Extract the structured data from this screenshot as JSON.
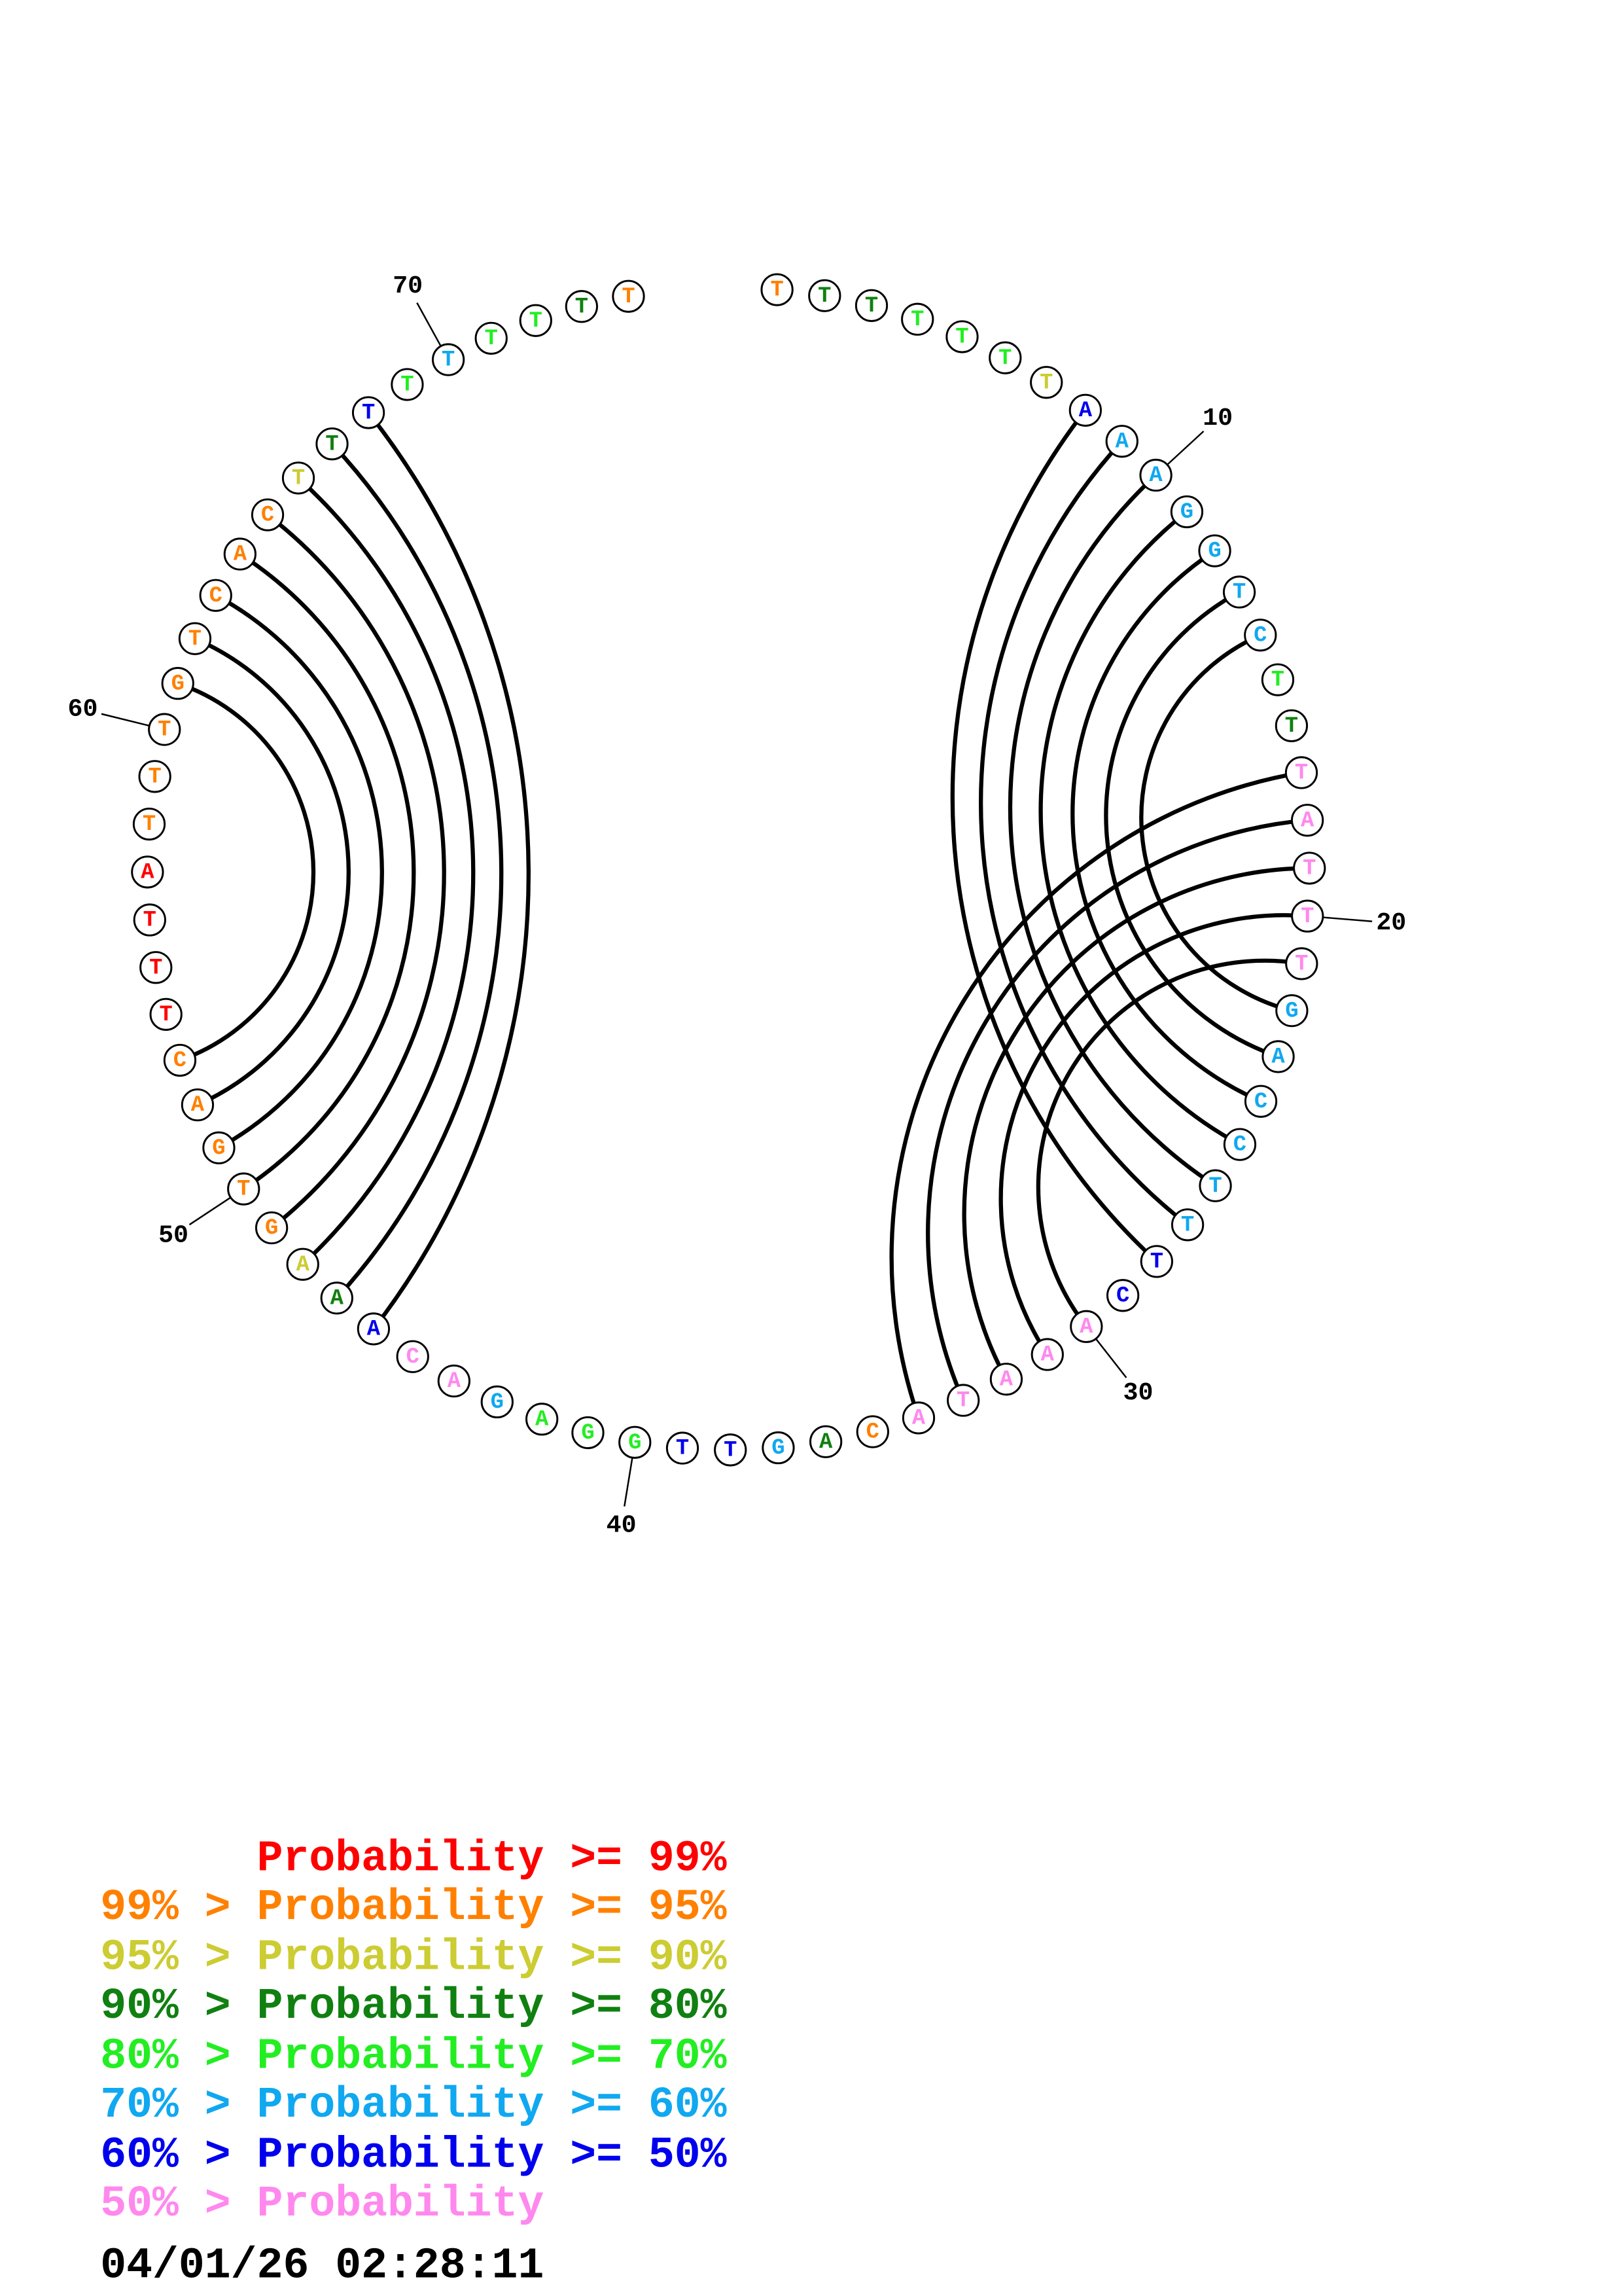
{
  "colors": {
    "p99": "#ff0000",
    "p95": "#ff8000",
    "p90": "#cccc33",
    "p80": "#108010",
    "p70": "#22ee22",
    "p60": "#10a8f0",
    "p50": "#0000ee",
    "lt50": "#ff88ee"
  },
  "structure": {
    "sequence": [
      "T",
      "T",
      "T",
      "T",
      "T",
      "T",
      "T",
      "A",
      "A",
      "A",
      "G",
      "G",
      "T",
      "C",
      "T",
      "T",
      "T",
      "A",
      "T",
      "T",
      "T",
      "G",
      "A",
      "C",
      "C",
      "T",
      "T",
      "T",
      "C",
      "A",
      "A",
      "A",
      "T",
      "A",
      "C",
      "A",
      "G",
      "T",
      "T",
      "G",
      "G",
      "A",
      "G",
      "A",
      "C",
      "A",
      "A",
      "A",
      "G",
      "T",
      "G",
      "A",
      "C",
      "T",
      "T",
      "T",
      "A",
      "T",
      "T",
      "T",
      "G",
      "T",
      "C",
      "A",
      "C",
      "T",
      "T",
      "T",
      "T",
      "T",
      "T",
      "T",
      "T",
      "T"
    ],
    "probability_class": [
      "p95",
      "p80",
      "p80",
      "p70",
      "p70",
      "p70",
      "p90",
      "p50",
      "p60",
      "p60",
      "p60",
      "p60",
      "p60",
      "p60",
      "p70",
      "p80",
      "lt50",
      "lt50",
      "lt50",
      "lt50",
      "lt50",
      "p60",
      "p60",
      "p60",
      "p60",
      "p60",
      "p60",
      "p50",
      "p50",
      "lt50",
      "lt50",
      "lt50",
      "lt50",
      "lt50",
      "p95",
      "p80",
      "p60",
      "p50",
      "p50",
      "p70",
      "p70",
      "p70",
      "p60",
      "lt50",
      "lt50",
      "p50",
      "p80",
      "p90",
      "p95",
      "p95",
      "p95",
      "p95",
      "p95",
      "p99",
      "p99",
      "p99",
      "p99",
      "p95",
      "p95",
      "p95",
      "p95",
      "p95",
      "p95",
      "p95",
      "p95",
      "p90",
      "p80",
      "p50",
      "p70",
      "p60",
      "p70",
      "p70",
      "p80",
      "p95"
    ],
    "pairs": [
      [
        8,
        28
      ],
      [
        9,
        27
      ],
      [
        10,
        26
      ],
      [
        11,
        25
      ],
      [
        12,
        24
      ],
      [
        13,
        23
      ],
      [
        14,
        22
      ],
      [
        17,
        34
      ],
      [
        18,
        33
      ],
      [
        19,
        32
      ],
      [
        20,
        31
      ],
      [
        21,
        30
      ],
      [
        46,
        68
      ],
      [
        47,
        67
      ],
      [
        48,
        66
      ],
      [
        49,
        65
      ],
      [
        50,
        64
      ],
      [
        51,
        63
      ],
      [
        52,
        62
      ],
      [
        53,
        61
      ]
    ],
    "position_labels": [
      "10",
      "20",
      "30",
      "40",
      "50",
      "60",
      "70"
    ]
  },
  "legend": [
    {
      "text": "      Probability >= 99%",
      "class": "p99"
    },
    {
      "text": "99% > Probability >= 95%",
      "class": "p95"
    },
    {
      "text": "95% > Probability >= 90%",
      "class": "p90"
    },
    {
      "text": "90% > Probability >= 80%",
      "class": "p80"
    },
    {
      "text": "80% > Probability >= 70%",
      "class": "p70"
    },
    {
      "text": "70% > Probability >= 60%",
      "class": "p60"
    },
    {
      "text": "60% > Probability >= 50%",
      "class": "p50"
    },
    {
      "text": "50% > Probability",
      "class": "lt50"
    }
  ],
  "timestamp": "04/01/26 02:28:11"
}
